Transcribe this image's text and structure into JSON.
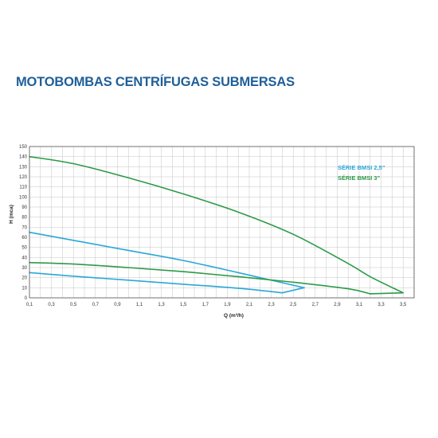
{
  "page": {
    "title": "MOTOBOMBAS CENTRÍFUGAS SUBMERSAS"
  },
  "chart_data": {
    "type": "line",
    "title": "",
    "xlabel": "Q (m³/h)",
    "ylabel": "H (mca)",
    "xlim": [
      0.1,
      3.6
    ],
    "ylim": [
      0,
      150
    ],
    "x_ticks": [
      "0,1",
      "0,3",
      "0,5",
      "0,7",
      "0,9",
      "1,1",
      "1,3",
      "1,5",
      "1,7",
      "1,9",
      "2,1",
      "2,3",
      "2,5",
      "2,7",
      "2,9",
      "3,1",
      "3,3",
      "3,5"
    ],
    "y_ticks": [
      "0",
      "10",
      "20",
      "30",
      "40",
      "50",
      "60",
      "70",
      "80",
      "90",
      "100",
      "110",
      "120",
      "130",
      "140",
      "150"
    ],
    "grid": true,
    "legend_position": "top-right",
    "series": [
      {
        "name": "SÉRIE BMSI 2,5\"",
        "color": "#2aa7d9",
        "lines": [
          [
            [
              0.1,
              65
            ],
            [
              0.5,
              57
            ],
            [
              1.0,
              47
            ],
            [
              1.5,
              37
            ],
            [
              2.0,
              25
            ],
            [
              2.4,
              15
            ],
            [
              2.6,
              10
            ]
          ],
          [
            [
              0.1,
              25
            ],
            [
              0.5,
              21.5
            ],
            [
              1.0,
              17.5
            ],
            [
              1.5,
              13.5
            ],
            [
              2.0,
              9.5
            ],
            [
              2.4,
              5
            ]
          ]
        ],
        "connector": [
          [
            2.4,
            5
          ],
          [
            2.6,
            10
          ]
        ]
      },
      {
        "name": "SÉRIE BMSI 3\"",
        "color": "#2c9a48",
        "lines": [
          [
            [
              0.1,
              140
            ],
            [
              0.5,
              133
            ],
            [
              1.0,
              119
            ],
            [
              1.5,
              103
            ],
            [
              2.0,
              85
            ],
            [
              2.5,
              63
            ],
            [
              3.0,
              34
            ],
            [
              3.2,
              21
            ],
            [
              3.5,
              5
            ]
          ],
          [
            [
              0.1,
              35
            ],
            [
              0.5,
              33.5
            ],
            [
              1.0,
              30
            ],
            [
              1.5,
              26
            ],
            [
              2.0,
              21
            ],
            [
              2.5,
              15.5
            ],
            [
              3.0,
              9
            ],
            [
              3.2,
              4
            ]
          ]
        ],
        "connector": [
          [
            3.2,
            4
          ],
          [
            3.5,
            5
          ]
        ]
      }
    ]
  }
}
